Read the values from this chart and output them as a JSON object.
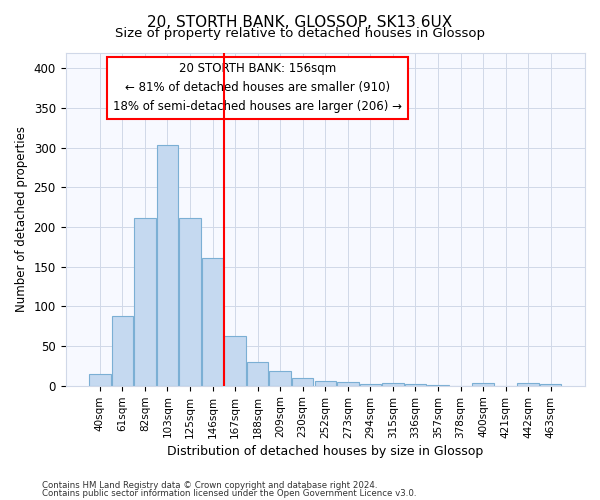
{
  "title1": "20, STORTH BANK, GLOSSOP, SK13 6UX",
  "title2": "Size of property relative to detached houses in Glossop",
  "xlabel": "Distribution of detached houses by size in Glossop",
  "ylabel": "Number of detached properties",
  "categories": [
    "40sqm",
    "61sqm",
    "82sqm",
    "103sqm",
    "125sqm",
    "146sqm",
    "167sqm",
    "188sqm",
    "209sqm",
    "230sqm",
    "252sqm",
    "273sqm",
    "294sqm",
    "315sqm",
    "336sqm",
    "357sqm",
    "378sqm",
    "400sqm",
    "421sqm",
    "442sqm",
    "463sqm"
  ],
  "values": [
    15,
    88,
    211,
    304,
    212,
    161,
    63,
    30,
    18,
    10,
    6,
    5,
    2,
    4,
    2,
    1,
    0,
    4,
    0,
    4,
    2
  ],
  "bar_color": "#c5d9f0",
  "bar_edgecolor": "#7bafd4",
  "bar_linewidth": 0.8,
  "vline_x": 5.5,
  "vline_color": "red",
  "annotation_line1": "20 STORTH BANK: 156sqm",
  "annotation_line2": "← 81% of detached houses are smaller (910)",
  "annotation_line3": "18% of semi-detached houses are larger (206) →",
  "annotation_box_color": "white",
  "annotation_box_edgecolor": "red",
  "ylim": [
    0,
    420
  ],
  "yticks": [
    0,
    50,
    100,
    150,
    200,
    250,
    300,
    350,
    400
  ],
  "footer1": "Contains HM Land Registry data © Crown copyright and database right 2024.",
  "footer2": "Contains public sector information licensed under the Open Government Licence v3.0.",
  "bg_color": "#ffffff",
  "axes_bg_color": "#f7f9ff",
  "grid_color": "#d0d8e8",
  "title1_fontsize": 11,
  "title2_fontsize": 9.5
}
